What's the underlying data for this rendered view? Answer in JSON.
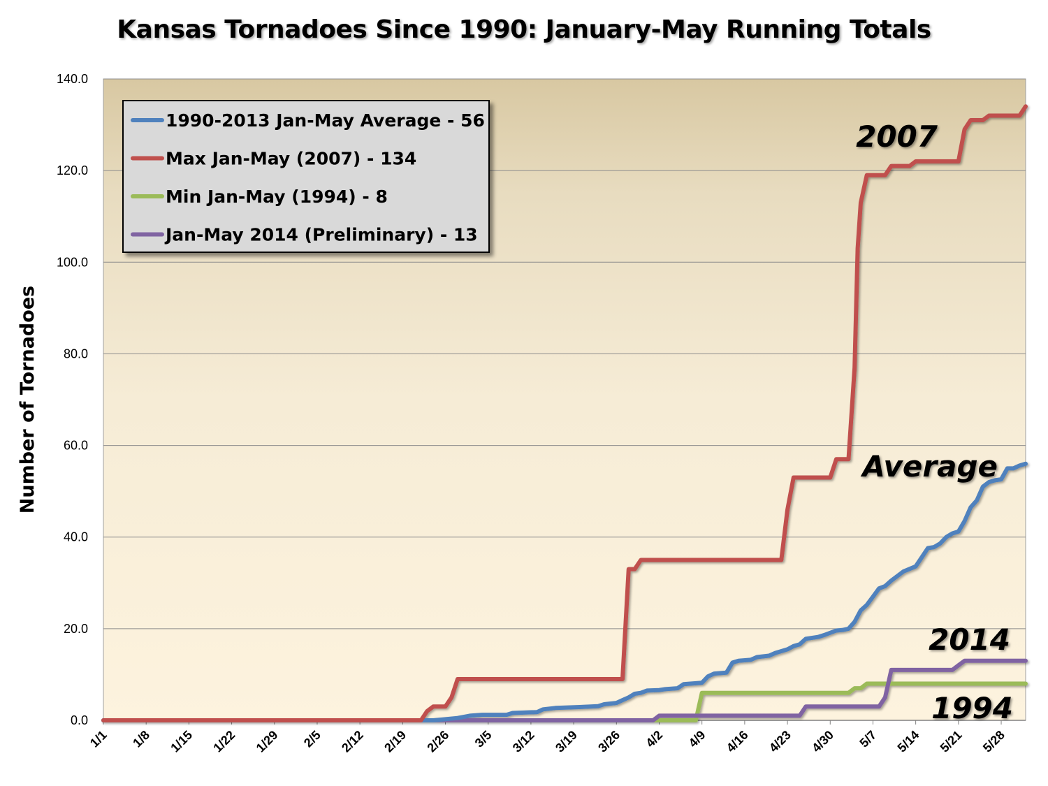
{
  "chart_data": {
    "type": "line",
    "title": "Kansas Tornadoes Since 1990: January-May Running Totals",
    "ylabel": "Number of Tornadoes",
    "xlabel": "",
    "ylim": [
      0,
      140
    ],
    "y_ticks": [
      "0.0",
      "20.0",
      "40.0",
      "60.0",
      "80.0",
      "100.0",
      "120.0",
      "140.0"
    ],
    "x_tick_labels": [
      "1/1",
      "1/8",
      "1/15",
      "1/22",
      "1/29",
      "2/5",
      "2/12",
      "2/19",
      "2/26",
      "3/5",
      "3/12",
      "3/19",
      "3/26",
      "4/2",
      "4/9",
      "4/16",
      "4/23",
      "4/30",
      "5/7",
      "5/14",
      "5/21",
      "5/28"
    ],
    "x_tick_days": [
      1,
      8,
      15,
      22,
      29,
      36,
      43,
      50,
      57,
      64,
      71,
      78,
      85,
      92,
      99,
      106,
      113,
      120,
      127,
      134,
      141,
      148
    ],
    "x_range_days": [
      1,
      152
    ],
    "grid": "horizontal",
    "legend_placement": "top-left",
    "series": [
      {
        "name": "1990-2013 Jan-May Average - 56",
        "color": "#4f81bd",
        "points": [
          [
            1,
            0
          ],
          [
            55,
            0
          ],
          [
            59,
            0.5
          ],
          [
            61,
            1
          ],
          [
            63,
            1.2
          ],
          [
            67,
            1.2
          ],
          [
            68,
            1.6
          ],
          [
            72,
            1.8
          ],
          [
            73,
            2.4
          ],
          [
            75,
            2.7
          ],
          [
            79,
            2.9
          ],
          [
            82,
            3.1
          ],
          [
            83,
            3.5
          ],
          [
            85,
            3.8
          ],
          [
            86,
            4.4
          ],
          [
            87,
            5
          ],
          [
            88,
            5.8
          ],
          [
            89,
            6
          ],
          [
            90,
            6.5
          ],
          [
            92,
            6.6
          ],
          [
            93,
            6.8
          ],
          [
            95,
            7
          ],
          [
            96,
            7.9
          ],
          [
            99,
            8.2
          ],
          [
            100,
            9.6
          ],
          [
            101,
            10.2
          ],
          [
            103,
            10.4
          ],
          [
            104,
            12.6
          ],
          [
            105,
            13
          ],
          [
            107,
            13.2
          ],
          [
            108,
            13.8
          ],
          [
            110,
            14.1
          ],
          [
            111,
            14.7
          ],
          [
            113,
            15.5
          ],
          [
            114,
            16.2
          ],
          [
            115,
            16.6
          ],
          [
            116,
            17.8
          ],
          [
            118,
            18.2
          ],
          [
            119,
            18.6
          ],
          [
            121,
            19.6
          ],
          [
            122,
            19.7
          ],
          [
            123,
            20
          ],
          [
            124,
            21.5
          ],
          [
            125,
            24
          ],
          [
            126,
            25.2
          ],
          [
            127,
            27
          ],
          [
            128,
            28.8
          ],
          [
            129,
            29.3
          ],
          [
            130,
            30.5
          ],
          [
            132,
            32.5
          ],
          [
            134,
            33.6
          ],
          [
            135,
            35.6
          ],
          [
            136,
            37.6
          ],
          [
            137,
            37.8
          ],
          [
            138,
            38.6
          ],
          [
            139,
            40
          ],
          [
            140,
            40.8
          ],
          [
            141,
            41.2
          ],
          [
            142,
            43.5
          ],
          [
            143,
            46.5
          ],
          [
            144,
            48
          ],
          [
            145,
            51
          ],
          [
            146,
            52
          ],
          [
            147,
            52.4
          ],
          [
            148,
            52.6
          ],
          [
            149,
            55
          ],
          [
            150,
            55
          ],
          [
            151,
            55.6
          ],
          [
            152,
            56
          ]
        ]
      },
      {
        "name": "Max Jan-May (2007) - 134",
        "color": "#c0504d",
        "points": [
          [
            1,
            0
          ],
          [
            53,
            0
          ],
          [
            54,
            2
          ],
          [
            55,
            3
          ],
          [
            57,
            3
          ],
          [
            58,
            5
          ],
          [
            59,
            9
          ],
          [
            86,
            9
          ],
          [
            87,
            33
          ],
          [
            88,
            33
          ],
          [
            89,
            35
          ],
          [
            112,
            35
          ],
          [
            113,
            46
          ],
          [
            114,
            53
          ],
          [
            120,
            53
          ],
          [
            121,
            57
          ],
          [
            123,
            57
          ],
          [
            124,
            77
          ],
          [
            124.5,
            103
          ],
          [
            125,
            113
          ],
          [
            126,
            119
          ],
          [
            129,
            119
          ],
          [
            130,
            121
          ],
          [
            133,
            121
          ],
          [
            134,
            122
          ],
          [
            141,
            122
          ],
          [
            142,
            129
          ],
          [
            143,
            131
          ],
          [
            145,
            131
          ],
          [
            146,
            132
          ],
          [
            151,
            132
          ],
          [
            152,
            134
          ]
        ]
      },
      {
        "name": "Min Jan-May (1994) - 8",
        "color": "#9bbb59",
        "points": [
          [
            1,
            0
          ],
          [
            92,
            0
          ],
          [
            98,
            0
          ],
          [
            99,
            6
          ],
          [
            123,
            6
          ],
          [
            124,
            7
          ],
          [
            125,
            7
          ],
          [
            126,
            8
          ],
          [
            152,
            8
          ]
        ]
      },
      {
        "name": "Jan-May 2014 (Preliminary) - 13",
        "color": "#8064a2",
        "points": [
          [
            1,
            0
          ],
          [
            91,
            0
          ],
          [
            92,
            1
          ],
          [
            113,
            1
          ],
          [
            115,
            1
          ],
          [
            116,
            3
          ],
          [
            128,
            3
          ],
          [
            129,
            5
          ],
          [
            130,
            11
          ],
          [
            140,
            11
          ],
          [
            141,
            12
          ],
          [
            142,
            13
          ],
          [
            152,
            13
          ]
        ]
      }
    ],
    "annotations": [
      "2007",
      "Average",
      "2014",
      "1994"
    ]
  }
}
